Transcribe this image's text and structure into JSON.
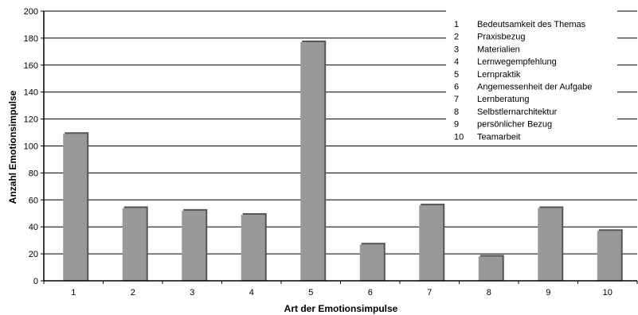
{
  "chart_data": {
    "type": "bar",
    "categories": [
      "1",
      "2",
      "3",
      "4",
      "5",
      "6",
      "7",
      "8",
      "9",
      "10"
    ],
    "values": [
      109,
      54,
      52,
      49,
      177,
      27,
      56,
      18,
      54,
      37
    ],
    "xlabel": "Art der Emotionsimpulse",
    "ylabel": "Anzahl Emotionsimpulse",
    "ylim": [
      0,
      200
    ],
    "yticks": [
      "0",
      "20",
      "40",
      "60",
      "80",
      "100",
      "120",
      "140",
      "160",
      "180",
      "200"
    ],
    "grid": true,
    "legend_position": "top-right",
    "legend": [
      {
        "number": "1",
        "label": "Bedeutsamkeit des Themas"
      },
      {
        "number": "2",
        "label": "Praxisbezug"
      },
      {
        "number": "3",
        "label": "Materialien"
      },
      {
        "number": "4",
        "label": "Lernwegempfehlung"
      },
      {
        "number": "5",
        "label": "Lernpraktik"
      },
      {
        "number": "6",
        "label": "Angemessenheit der Aufgabe"
      },
      {
        "number": "7",
        "label": "Lernberatung"
      },
      {
        "number": "8",
        "label": "Selbstlernarchitektur"
      },
      {
        "number": "9",
        "label": "persönlicher Bezug"
      },
      {
        "number": "10",
        "label": "Teamarbeit"
      }
    ],
    "bar_color": "#999999",
    "bar_shadow_color": "#555555"
  }
}
